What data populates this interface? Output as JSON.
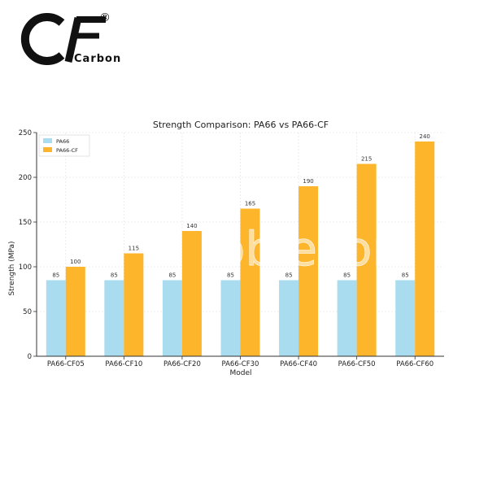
{
  "brand": {
    "logo_text": "Carbon",
    "registered_mark": "®",
    "colors": {
      "logo": "#111111"
    }
  },
  "watermark": {
    "text": "oblecom"
  },
  "chart_data": {
    "type": "bar",
    "title": "Strength Comparison: PA66 vs PA66-CF",
    "xlabel": "Model",
    "ylabel": "Strength (MPa)",
    "ylim": [
      0,
      250
    ],
    "yticks": [
      0,
      50,
      100,
      150,
      200,
      250
    ],
    "grid": true,
    "legend_position": "top-left",
    "categories": [
      "PA66-CF05",
      "PA66-CF10",
      "PA66-CF20",
      "PA66-CF30",
      "PA66-CF40",
      "PA66-CF50",
      "PA66-CF60"
    ],
    "series": [
      {
        "name": "PA66",
        "color": "#aadcf0",
        "values": [
          85,
          85,
          85,
          85,
          85,
          85,
          85
        ]
      },
      {
        "name": "PA66-CF",
        "color": "#fdb52b",
        "values": [
          100,
          115,
          140,
          165,
          190,
          215,
          240
        ]
      }
    ]
  }
}
